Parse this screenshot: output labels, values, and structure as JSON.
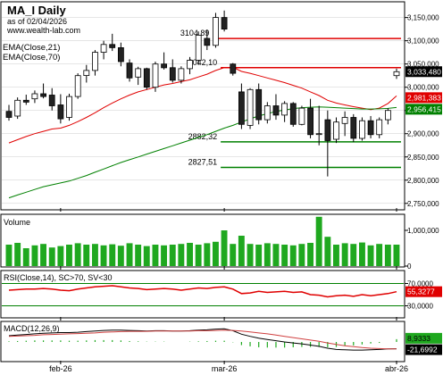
{
  "header": {
    "title": "MA_I Daily",
    "as_of": "as of 02/04/2026",
    "site": "www.wealth-lab.com",
    "indicator1": "EMA(Close,21)",
    "indicator2": "EMA(Close,70)"
  },
  "colors": {
    "up": "#ffffff",
    "down": "#222222",
    "ema21": "#e00000",
    "ema70": "#008000",
    "volume": "#1fa81f",
    "rsi": "#e00000",
    "macd": "#000000",
    "signal": "#d04040",
    "hist": "#1fa81f",
    "pane_border": "#000000",
    "grid": "#cccccc",
    "last_price_bg": "#000000",
    "ema21_tag_bg": "#e00000",
    "ema70_tag_bg": "#008000",
    "hline_red": "#e00000",
    "hline_green": "#008000"
  },
  "chart_data": [
    {
      "type": "candlestick",
      "pane": "price",
      "title": "MA_I Daily",
      "ylim": [
        2740000,
        3180000
      ],
      "y_ticks": [
        "3,150,000",
        "3,100,000",
        "3,050,000",
        "3,000,000",
        "2,950,000",
        "2,900,000",
        "2,850,000",
        "2,800,000",
        "2,750,000"
      ],
      "y_tick_values": [
        3150000,
        3100000,
        3050000,
        3000000,
        2950000,
        2900000,
        2850000,
        2800000,
        2750000
      ],
      "x_labels": [
        "feb-26",
        "mar-26",
        "abr-26"
      ],
      "x_label_index": [
        6,
        25,
        45
      ],
      "last_price": "3,033,480",
      "ema21_last": "2,981,383",
      "ema70_last": "2,956,415",
      "levels": [
        {
          "label": "3104,89",
          "value": 3104890,
          "color": "red"
        },
        {
          "label": "3042,10",
          "value": 3042100,
          "color": "red"
        },
        {
          "label": "2882,32",
          "value": 2882320,
          "color": "green"
        },
        {
          "label": "2827,51",
          "value": 2827510,
          "color": "green"
        }
      ],
      "candles": [
        {
          "o": 2948000,
          "h": 2962000,
          "l": 2928000,
          "c": 2935000
        },
        {
          "o": 2938000,
          "h": 2978000,
          "l": 2932000,
          "c": 2972000
        },
        {
          "o": 2972000,
          "h": 2984000,
          "l": 2962000,
          "c": 2968000
        },
        {
          "o": 2975000,
          "h": 2993000,
          "l": 2966000,
          "c": 2986000
        },
        {
          "o": 2986000,
          "h": 3008000,
          "l": 2976000,
          "c": 2980000
        },
        {
          "o": 2983000,
          "h": 2998000,
          "l": 2950000,
          "c": 2960000
        },
        {
          "o": 2962000,
          "h": 2985000,
          "l": 2922000,
          "c": 2932000
        },
        {
          "o": 2935000,
          "h": 2986000,
          "l": 2928000,
          "c": 2980000
        },
        {
          "o": 2980000,
          "h": 3030000,
          "l": 2975000,
          "c": 3025000
        },
        {
          "o": 3025000,
          "h": 3048000,
          "l": 3010000,
          "c": 3036000
        },
        {
          "o": 3036000,
          "h": 3080000,
          "l": 3025000,
          "c": 3075000
        },
        {
          "o": 3075000,
          "h": 3100000,
          "l": 3060000,
          "c": 3092000
        },
        {
          "o": 3092000,
          "h": 3115000,
          "l": 3078000,
          "c": 3085000
        },
        {
          "o": 3085000,
          "h": 3096000,
          "l": 3045000,
          "c": 3055000
        },
        {
          "o": 3052000,
          "h": 3060000,
          "l": 3012000,
          "c": 3020000
        },
        {
          "o": 3022000,
          "h": 3044000,
          "l": 3005000,
          "c": 3040000
        },
        {
          "o": 3040000,
          "h": 3042000,
          "l": 2995000,
          "c": 3000000
        },
        {
          "o": 3000000,
          "h": 3055000,
          "l": 2990000,
          "c": 3050000
        },
        {
          "o": 3050000,
          "h": 3075000,
          "l": 3038000,
          "c": 3042000
        },
        {
          "o": 3042000,
          "h": 3060000,
          "l": 3010000,
          "c": 3015000
        },
        {
          "o": 3015000,
          "h": 3045000,
          "l": 3008000,
          "c": 3040000
        },
        {
          "o": 3040000,
          "h": 3065000,
          "l": 3028000,
          "c": 3058000
        },
        {
          "o": 3058000,
          "h": 3120000,
          "l": 3048000,
          "c": 3112000
        },
        {
          "o": 3105000,
          "h": 3124000,
          "l": 3080000,
          "c": 3090000
        },
        {
          "o": 3090000,
          "h": 3160000,
          "l": 3085000,
          "c": 3150000
        },
        {
          "o": 3150000,
          "h": 3165000,
          "l": 3120000,
          "c": 3125000
        },
        {
          "o": 3050000,
          "h": 3052000,
          "l": 3025000,
          "c": 3030000
        },
        {
          "o": 2990000,
          "h": 3008000,
          "l": 2910000,
          "c": 2920000
        },
        {
          "o": 2918000,
          "h": 2998000,
          "l": 2910000,
          "c": 2995000
        },
        {
          "o": 2995000,
          "h": 3008000,
          "l": 2920000,
          "c": 2930000
        },
        {
          "o": 2930000,
          "h": 2968000,
          "l": 2922000,
          "c": 2960000
        },
        {
          "o": 2960000,
          "h": 2985000,
          "l": 2930000,
          "c": 2940000
        },
        {
          "o": 2940000,
          "h": 2970000,
          "l": 2925000,
          "c": 2965000
        },
        {
          "o": 2965000,
          "h": 2968000,
          "l": 2915000,
          "c": 2920000
        },
        {
          "o": 2920000,
          "h": 2960000,
          "l": 2918000,
          "c": 2955000
        },
        {
          "o": 2955000,
          "h": 2975000,
          "l": 2890000,
          "c": 2898000
        },
        {
          "o": 2898000,
          "h": 2960000,
          "l": 2875000,
          "c": 2900000
        },
        {
          "o": 2930000,
          "h": 2950000,
          "l": 2808000,
          "c": 2885000
        },
        {
          "o": 2888000,
          "h": 2935000,
          "l": 2880000,
          "c": 2925000
        },
        {
          "o": 2922000,
          "h": 2948000,
          "l": 2895000,
          "c": 2935000
        },
        {
          "o": 2935000,
          "h": 2942000,
          "l": 2882000,
          "c": 2890000
        },
        {
          "o": 2890000,
          "h": 2935000,
          "l": 2885000,
          "c": 2928000
        },
        {
          "o": 2928000,
          "h": 2938000,
          "l": 2890000,
          "c": 2898000
        },
        {
          "o": 2898000,
          "h": 2935000,
          "l": 2890000,
          "c": 2930000
        },
        {
          "o": 2930000,
          "h": 2955000,
          "l": 2920000,
          "c": 2950000
        },
        {
          "o": 3025000,
          "h": 3040000,
          "l": 3018000,
          "c": 3033480
        }
      ],
      "series": [
        {
          "name": "EMA(Close,21)",
          "values": [
            2880000,
            2887000,
            2894000,
            2900000,
            2905000,
            2910000,
            2912000,
            2918000,
            2926000,
            2935000,
            2945000,
            2956000,
            2966000,
            2975000,
            2983000,
            2990000,
            2995000,
            3000000,
            3005000,
            3008000,
            3012000,
            3016000,
            3022000,
            3028000,
            3036000,
            3042000,
            3043000,
            3034000,
            3030000,
            3025000,
            3020000,
            3015000,
            3010000,
            3004000,
            2998000,
            2990000,
            2982000,
            2972000,
            2966000,
            2962000,
            2958000,
            2955000,
            2952000,
            2955000,
            2965000,
            2981383
          ]
        },
        {
          "name": "EMA(Close,70)",
          "values": [
            2762000,
            2768000,
            2774000,
            2780000,
            2786000,
            2790000,
            2794000,
            2798000,
            2804000,
            2810000,
            2817000,
            2824000,
            2831000,
            2838000,
            2844000,
            2850000,
            2856000,
            2862000,
            2868000,
            2874000,
            2880000,
            2886000,
            2892000,
            2898000,
            2905000,
            2912000,
            2918000,
            2925000,
            2932000,
            2938000,
            2943000,
            2948000,
            2951000,
            2954000,
            2956000,
            2957000,
            2957500,
            2957000,
            2956000,
            2955000,
            2954000,
            2953000,
            2953000,
            2953500,
            2954500,
            2956415
          ]
        }
      ]
    },
    {
      "type": "bar",
      "pane": "volume",
      "title": "Volume",
      "y_ticks": [
        "1,000,000",
        "0"
      ],
      "y_tick_values": [
        1000000,
        0
      ],
      "ylim": [
        0,
        1400000
      ],
      "values": [
        600000,
        650000,
        500000,
        580000,
        620000,
        520000,
        560000,
        600000,
        640000,
        600000,
        620000,
        580000,
        610000,
        570000,
        640000,
        600000,
        560000,
        600000,
        580000,
        600000,
        620000,
        650000,
        600000,
        640000,
        680000,
        1000000,
        620000,
        850000,
        620000,
        600000,
        640000,
        620000,
        600000,
        580000,
        620000,
        650000,
        1380000,
        820000,
        600000,
        640000,
        620000,
        660000,
        580000,
        620000,
        600000,
        600000
      ]
    },
    {
      "type": "line",
      "pane": "rsi",
      "title": "RSI(Close,14), SC>70, SV<30",
      "last_value": "55,3277",
      "y_ticks": [
        "70,0000",
        "30,0000"
      ],
      "y_tick_values": [
        70,
        30
      ],
      "ylim": [
        10,
        90
      ],
      "series": [
        {
          "name": "RSI(Close,14)",
          "values": [
            58,
            59,
            60,
            60,
            61,
            60,
            58,
            57,
            60,
            62,
            64,
            65,
            66,
            64,
            62,
            61,
            59,
            60,
            61,
            60,
            58,
            60,
            62,
            61,
            63,
            64,
            60,
            52,
            53,
            56,
            54,
            55,
            56,
            54,
            55,
            50,
            49,
            46,
            48,
            49,
            47,
            50,
            48,
            50,
            52,
            55.3277
          ]
        }
      ]
    },
    {
      "type": "line",
      "pane": "macd",
      "title": "MACD(12,26,9)",
      "last_values": [
        "8,9333",
        "-21,6992"
      ],
      "ylim": [
        -60,
        60
      ],
      "series": [
        {
          "name": "MACD(12,26,9)",
          "values": [
            20,
            22,
            24,
            26,
            28,
            29,
            30,
            30,
            31,
            33,
            35,
            37,
            38,
            38,
            37,
            36,
            35,
            36,
            36,
            35,
            35,
            36,
            38,
            39,
            41,
            42,
            36,
            25,
            18,
            12,
            8,
            4,
            0,
            -3,
            -6,
            -10,
            -14,
            -20,
            -24,
            -25,
            -26,
            -26,
            -25,
            -24,
            -22,
            -21.6992
          ]
        },
        {
          "name": "Signal",
          "values": [
            18,
            19,
            20,
            21,
            23,
            24,
            25,
            26,
            27,
            28,
            29,
            31,
            32,
            33,
            34,
            34,
            34,
            35,
            35,
            35,
            35,
            35,
            36,
            36,
            37,
            38,
            37,
            35,
            32,
            29,
            26,
            22,
            18,
            14,
            10,
            6,
            2,
            -3,
            -8,
            -12,
            -15,
            -18,
            -20,
            -21,
            -22,
            -22
          ]
        }
      ],
      "histogram": [
        2,
        3,
        4,
        5,
        5,
        5,
        5,
        4,
        4,
        5,
        6,
        6,
        6,
        5,
        3,
        2,
        1,
        1,
        1,
        0,
        0,
        1,
        2,
        3,
        4,
        4,
        -1,
        -10,
        -14,
        -17,
        -18,
        -18,
        -18,
        -17,
        -16,
        -16,
        -16,
        -17,
        -16,
        -13,
        -11,
        -8,
        -5,
        -3,
        0,
        8.9333
      ]
    }
  ]
}
